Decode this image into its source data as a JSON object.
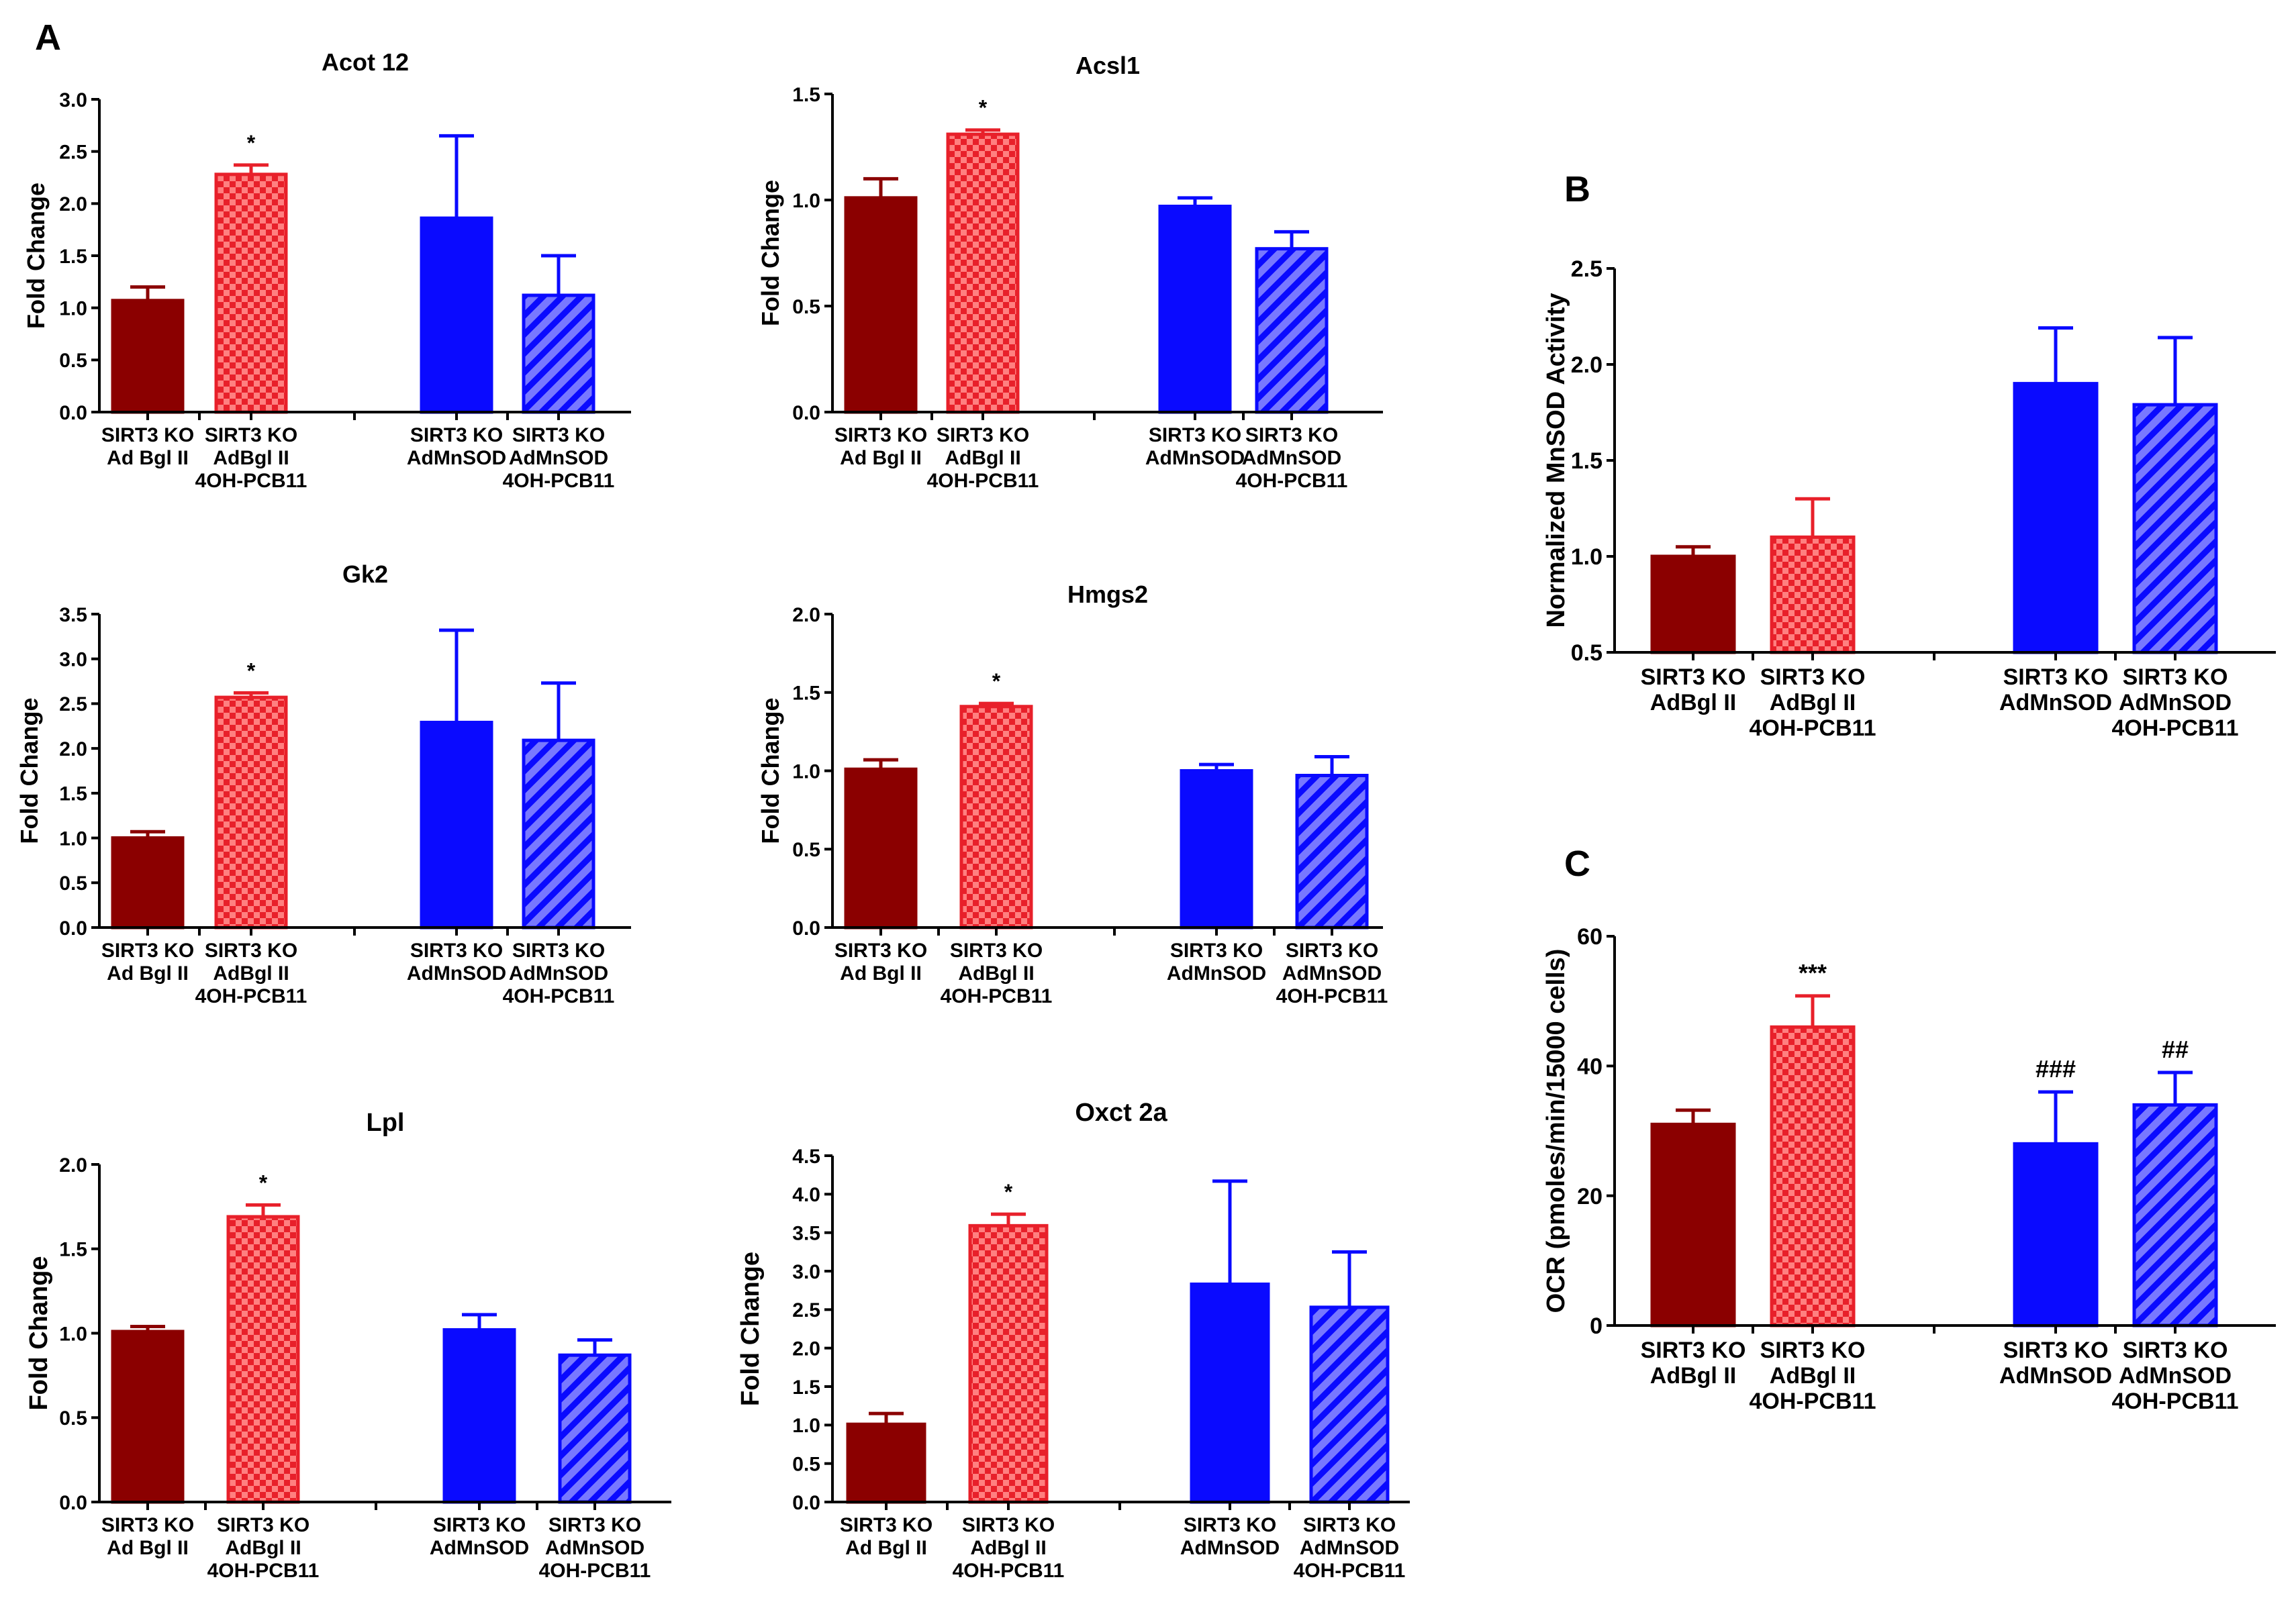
{
  "figure": {
    "panel_labels": {
      "a": "A",
      "b": "B",
      "c": "C"
    },
    "colors": {
      "dark_red": "#8b0000",
      "bright_red": "#e8202a",
      "checker_light": "#ff8080",
      "blue": "#0a0aff",
      "hatch_light": "#7878ff",
      "axis": "#000000"
    }
  },
  "chart_data": [
    {
      "id": "acot12",
      "panel": "A",
      "type": "bar",
      "title": "Acot 12",
      "ylabel": "Fold Change",
      "ylim": [
        0,
        3.0
      ],
      "yticks": [
        "0.0",
        "0.5",
        "1.0",
        "1.5",
        "2.0",
        "2.5",
        "3.0"
      ],
      "categories": [
        [
          "SIRT3 KO",
          "Ad Bgl II"
        ],
        [
          "SIRT3 KO",
          "AdBgl II",
          "4OH-PCB11"
        ],
        [
          "SIRT3 KO",
          "AdMnSOD"
        ],
        [
          "SIRT3 KO",
          "AdMnSOD",
          "4OH-PCB11"
        ]
      ],
      "values": [
        1.07,
        2.28,
        1.86,
        1.12
      ],
      "errors": [
        0.13,
        0.09,
        0.79,
        0.38
      ],
      "annotations": [
        "",
        "*",
        "",
        ""
      ]
    },
    {
      "id": "acsl1",
      "panel": "A",
      "type": "bar",
      "title": "Acsl1",
      "ylabel": "Fold Change",
      "ylim": [
        0,
        1.5
      ],
      "yticks": [
        "0.0",
        "0.5",
        "1.0",
        "1.5"
      ],
      "categories": [
        [
          "SIRT3 KO",
          "Ad Bgl II"
        ],
        [
          "SIRT3 KO",
          "AdBgl II",
          "4OH-PCB11"
        ],
        [
          "SIRT3 KO",
          "AdMnSOD"
        ],
        [
          "SIRT3 KO",
          "AdMnSOD",
          "4OH-PCB11"
        ]
      ],
      "values": [
        1.01,
        1.31,
        0.97,
        0.77
      ],
      "errors": [
        0.09,
        0.02,
        0.04,
        0.08
      ],
      "annotations": [
        "",
        "*",
        "",
        ""
      ]
    },
    {
      "id": "gk2",
      "panel": "A",
      "type": "bar",
      "title": "Gk2",
      "ylabel": "Fold Change",
      "ylim": [
        0,
        3.5
      ],
      "yticks": [
        "0.0",
        "0.5",
        "1.0",
        "1.5",
        "2.0",
        "2.5",
        "3.0",
        "3.5"
      ],
      "categories": [
        [
          "SIRT3 KO",
          "Ad Bgl II"
        ],
        [
          "SIRT3 KO",
          "AdBgl II",
          "4OH-PCB11"
        ],
        [
          "SIRT3 KO",
          "AdMnSOD"
        ],
        [
          "SIRT3 KO",
          "AdMnSOD",
          "4OH-PCB11"
        ]
      ],
      "values": [
        1.0,
        2.57,
        2.29,
        2.09
      ],
      "errors": [
        0.07,
        0.05,
        1.03,
        0.64
      ],
      "annotations": [
        "",
        "*",
        "",
        ""
      ]
    },
    {
      "id": "hmgs2",
      "panel": "A",
      "type": "bar",
      "title": "Hmgs2",
      "ylabel": "Fold Change",
      "ylim": [
        0,
        2.0
      ],
      "yticks": [
        "0.0",
        "0.5",
        "1.0",
        "1.5",
        "2.0"
      ],
      "categories": [
        [
          "SIRT3 KO",
          "Ad Bgl II"
        ],
        [
          "SIRT3 KO",
          "AdBgl II",
          "4OH-PCB11"
        ],
        [
          "SIRT3 KO",
          "AdMnSOD"
        ],
        [
          "SIRT3 KO",
          "AdMnSOD",
          "4OH-PCB11"
        ]
      ],
      "values": [
        1.01,
        1.41,
        1.0,
        0.97
      ],
      "errors": [
        0.06,
        0.02,
        0.04,
        0.12
      ],
      "annotations": [
        "",
        "*",
        "",
        ""
      ]
    },
    {
      "id": "lpl",
      "panel": "A",
      "type": "bar",
      "title": "Lpl",
      "ylabel": "Fold Change",
      "ylim": [
        0,
        2.0
      ],
      "yticks": [
        "0.0",
        "0.5",
        "1.0",
        "1.5",
        "2.0"
      ],
      "categories": [
        [
          "SIRT3 KO",
          "Ad Bgl II"
        ],
        [
          "SIRT3 KO",
          "AdBgl II",
          "4OH-PCB11"
        ],
        [
          "SIRT3 KO",
          "AdMnSOD"
        ],
        [
          "SIRT3 KO",
          "AdMnSOD",
          "4OH-PCB11"
        ]
      ],
      "values": [
        1.01,
        1.69,
        1.02,
        0.87
      ],
      "errors": [
        0.03,
        0.07,
        0.09,
        0.09
      ],
      "annotations": [
        "",
        "*",
        "",
        ""
      ]
    },
    {
      "id": "oxct2a",
      "panel": "A",
      "type": "bar",
      "title": "Oxct 2a",
      "ylabel": "Fold Change",
      "ylim": [
        0,
        4.5
      ],
      "yticks": [
        "0.0",
        "0.5",
        "1.0",
        "1.5",
        "2.0",
        "2.5",
        "3.0",
        "3.5",
        "4.0",
        "4.5"
      ],
      "categories": [
        [
          "SIRT3 KO",
          "Ad Bgl II"
        ],
        [
          "SIRT3 KO",
          "AdBgl II",
          "4OH-PCB11"
        ],
        [
          "SIRT3 KO",
          "AdMnSOD"
        ],
        [
          "SIRT3 KO",
          "AdMnSOD",
          "4OH-PCB11"
        ]
      ],
      "values": [
        1.01,
        3.59,
        2.83,
        2.53
      ],
      "errors": [
        0.14,
        0.15,
        1.34,
        0.72
      ],
      "annotations": [
        "",
        "*",
        "",
        ""
      ]
    },
    {
      "id": "mnsod",
      "panel": "B",
      "type": "bar",
      "title": "",
      "ylabel": "Normalized MnSOD Activity",
      "ylim": [
        0.5,
        2.5
      ],
      "yticks": [
        "0.5",
        "1.0",
        "1.5",
        "2.0",
        "2.5"
      ],
      "categories": [
        [
          "SIRT3 KO",
          "AdBgl II"
        ],
        [
          "SIRT3 KO",
          "AdBgl II",
          "4OH-PCB11"
        ],
        [
          "SIRT3 KO",
          "AdMnSOD"
        ],
        [
          "SIRT3 KO",
          "AdMnSOD",
          "4OH-PCB11"
        ]
      ],
      "values": [
        1.0,
        1.1,
        1.9,
        1.79
      ],
      "errors": [
        0.05,
        0.2,
        0.29,
        0.35
      ],
      "annotations": [
        "",
        "",
        "",
        ""
      ]
    },
    {
      "id": "ocr",
      "panel": "C",
      "type": "bar",
      "title": "",
      "ylabel": "OCR (pmoles/min/15000 cells)",
      "ylim": [
        0,
        60
      ],
      "yticks": [
        "0",
        "20",
        "40",
        "60"
      ],
      "categories": [
        [
          "SIRT3 KO",
          "AdBgl II"
        ],
        [
          "SIRT3 KO",
          "AdBgl II",
          "4OH-PCB11"
        ],
        [
          "SIRT3 KO",
          "AdMnSOD"
        ],
        [
          "SIRT3 KO",
          "AdMnSOD",
          "4OH-PCB11"
        ]
      ],
      "values": [
        31.0,
        46.0,
        28.0,
        34.0
      ],
      "errors": [
        2.2,
        4.8,
        8.0,
        5.0
      ],
      "annotations": [
        "",
        "***",
        "###",
        "##"
      ]
    }
  ]
}
